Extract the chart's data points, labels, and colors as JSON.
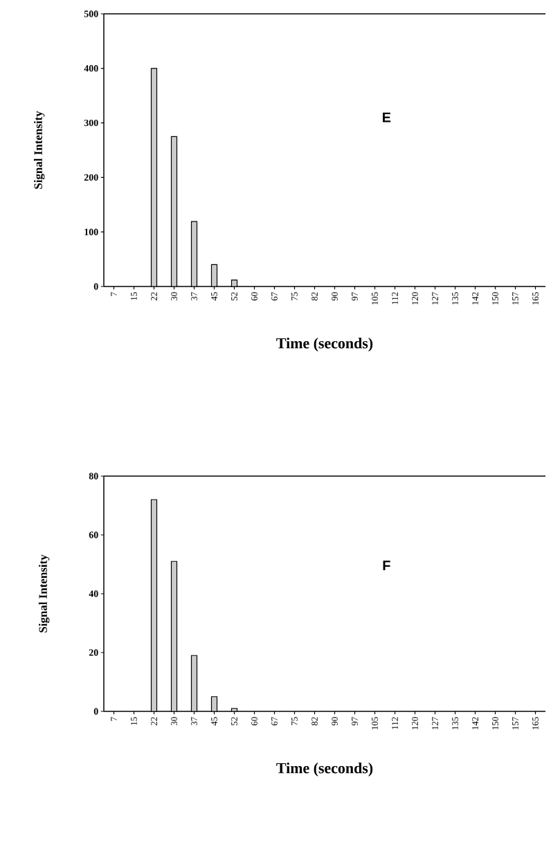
{
  "chart_data": [
    {
      "type": "bar",
      "xlabel": "Time  (seconds)",
      "ylabel": "Signal Intensity",
      "annotations": [
        "E"
      ],
      "categories": [
        "7",
        "15",
        "22",
        "30",
        "37",
        "45",
        "52",
        "60",
        "67",
        "75",
        "82",
        "90",
        "97",
        "105",
        "112",
        "120",
        "127",
        "135",
        "142",
        "150",
        "157",
        "165"
      ],
      "values": [
        0,
        0,
        400,
        275,
        119,
        40,
        12,
        0,
        0,
        0,
        0,
        0,
        0,
        0,
        0,
        0,
        0,
        0,
        0,
        0,
        0,
        0
      ],
      "color": "#cccccc",
      "ylim": [
        0,
        500
      ],
      "yticks": [
        0,
        100,
        200,
        300,
        400,
        500
      ],
      "grid": false
    },
    {
      "type": "bar",
      "xlabel": "Time  (seconds)",
      "ylabel": "Signal Intensity",
      "annotations": [
        "F"
      ],
      "categories": [
        "7",
        "15",
        "22",
        "30",
        "37",
        "45",
        "52",
        "60",
        "67",
        "75",
        "82",
        "90",
        "97",
        "105",
        "112",
        "120",
        "127",
        "135",
        "142",
        "150",
        "157",
        "165"
      ],
      "values": [
        0,
        0,
        72,
        51,
        19,
        5,
        1,
        0,
        0,
        0,
        0,
        0,
        0,
        0,
        0,
        0,
        0,
        0,
        0,
        0,
        0,
        0
      ],
      "color": "#cccccc",
      "ylim": [
        0,
        80
      ],
      "yticks": [
        0,
        20,
        40,
        60,
        80
      ],
      "grid": false
    }
  ]
}
